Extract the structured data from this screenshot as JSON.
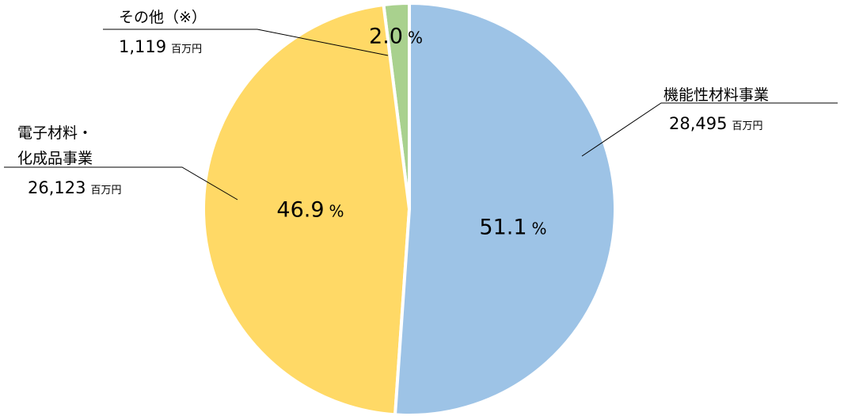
{
  "chart_data": {
    "type": "pie",
    "categories": [
      "機能性材料事業",
      "電子材料・\n化成品事業",
      "その他（※）"
    ],
    "values": [
      51.1,
      46.9,
      2.0
    ],
    "value_labels": [
      "51.1",
      "46.9",
      "2.0"
    ],
    "value_unit": "%",
    "amounts": [
      "28,495",
      "26,123",
      "1,119"
    ],
    "amount_unit": "百万円",
    "colors": [
      "#9dc3e6",
      "#ffd966",
      "#a9d18e"
    ]
  }
}
